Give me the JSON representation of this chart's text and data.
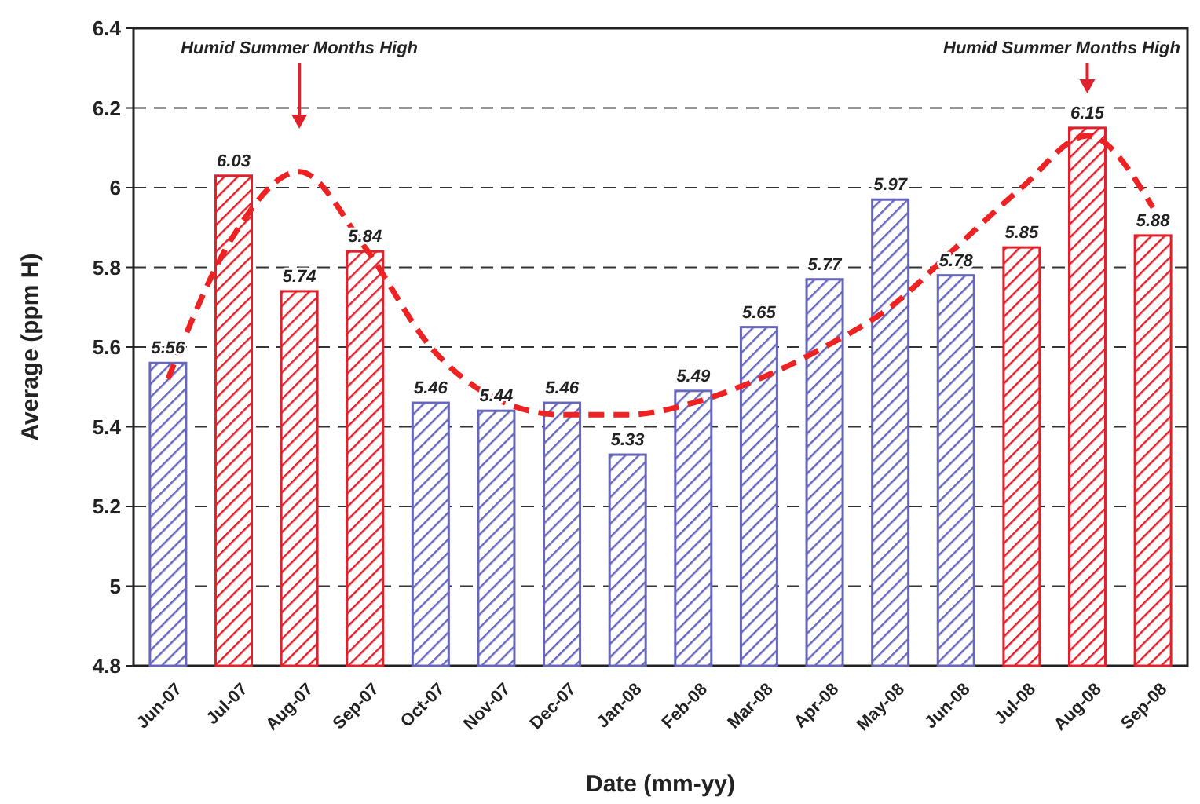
{
  "chart_data": {
    "type": "bar",
    "ylabel": "Average (ppm H)",
    "xlabel": "Date (mm-yy)",
    "categories": [
      "Jun-07",
      "Jul-07",
      "Aug-07",
      "Sep-07",
      "Oct-07",
      "Nov-07",
      "Dec-07",
      "Jan-08",
      "Feb-08",
      "Mar-08",
      "Apr-08",
      "May-08",
      "Jun-08",
      "Jul-08",
      "Aug-08",
      "Sep-08"
    ],
    "values": [
      5.56,
      6.03,
      5.74,
      5.84,
      5.46,
      5.44,
      5.46,
      5.33,
      5.49,
      5.65,
      5.77,
      5.97,
      5.78,
      5.85,
      6.15,
      5.88
    ],
    "colors": [
      "#6666bb",
      "#e0202a",
      "#e0202a",
      "#e0202a",
      "#6666bb",
      "#6666bb",
      "#6666bb",
      "#6666bb",
      "#6666bb",
      "#6666bb",
      "#6666bb",
      "#6666bb",
      "#6666bb",
      "#e0202a",
      "#e0202a",
      "#e0202a"
    ],
    "series": [
      {
        "type": "line",
        "color": "#ee2222",
        "line_style": "dashed",
        "values": [
          5.52,
          5.88,
          6.04,
          5.85,
          5.6,
          5.47,
          5.43,
          5.43,
          5.46,
          5.52,
          5.6,
          5.7,
          5.85,
          6.0,
          6.13,
          5.95
        ]
      }
    ],
    "value_labels": [
      "5.56",
      "6.03",
      "5.74",
      "5.84",
      "5.46",
      "5.44",
      "5.46",
      "5.33",
      "5.49",
      "5.65",
      "5.77",
      "5.97",
      "5.78",
      "5.85",
      "6.15",
      "5.88"
    ],
    "ylim": [
      4.8,
      6.4
    ],
    "yticks": [
      4.8,
      5,
      5.2,
      5.4,
      5.6,
      5.8,
      6,
      6.2,
      6.4
    ],
    "grid": "y",
    "annotations": [
      "Humid Summer Months High",
      "Humid Summer Months High"
    ]
  }
}
